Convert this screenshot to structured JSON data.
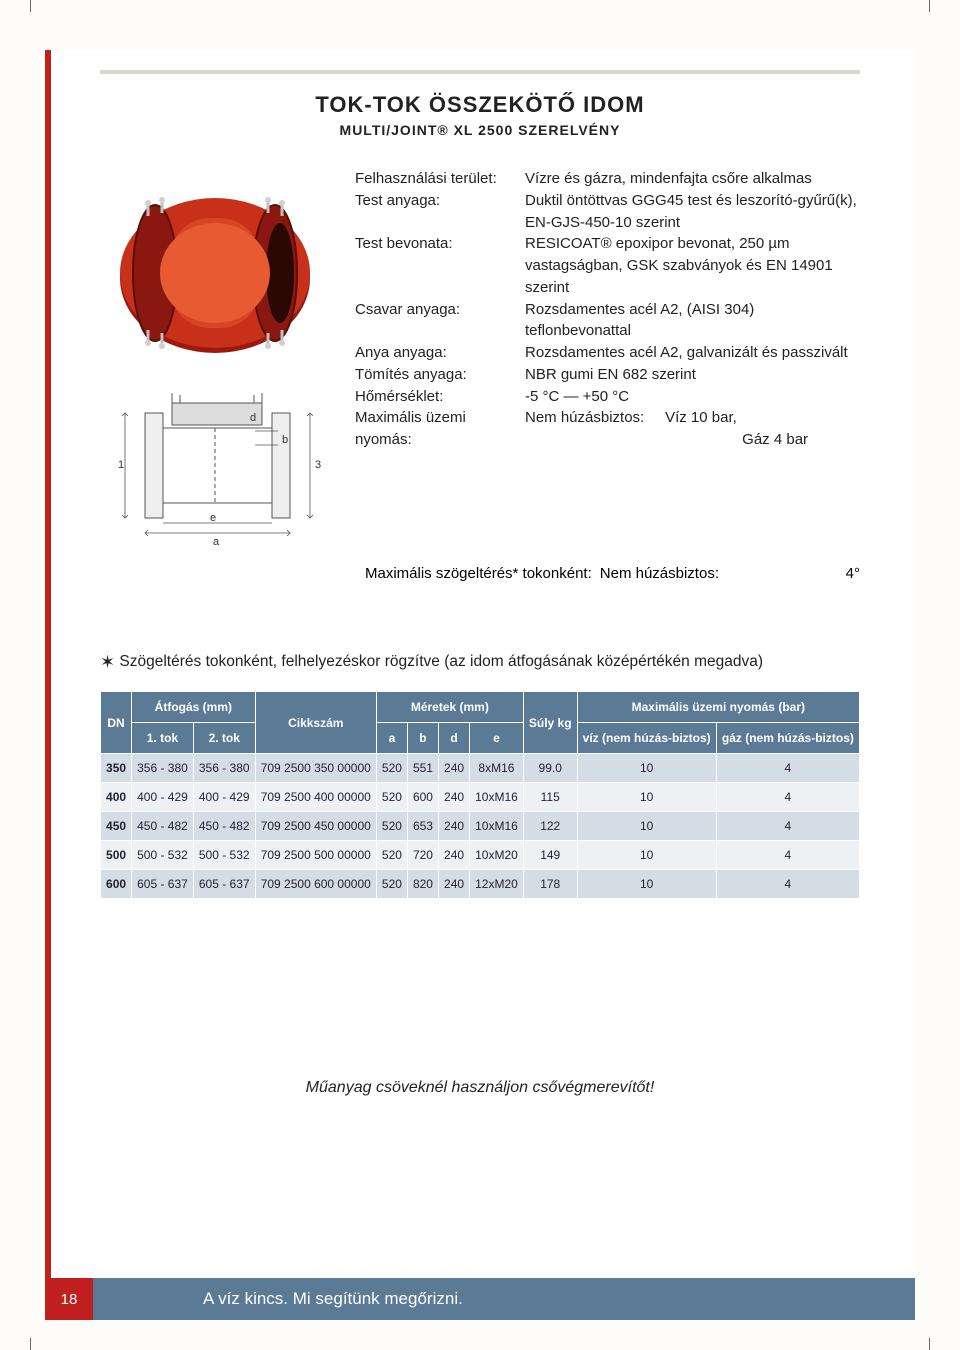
{
  "title": "TOK-TOK ÖSSZEKÖTŐ IDOM",
  "subtitle": "MULTI/JOINT® XL 2500 SZERELVÉNY",
  "specs": [
    {
      "label": "Felhasználási terület:",
      "value": "Vízre és gázra, mindenfajta csőre alkalmas"
    },
    {
      "label": "Test anyaga:",
      "value": "Duktil öntöttvas GGG45 test és leszorító-gyűrű(k), EN-GJS-450-10 szerint"
    },
    {
      "label": "Test bevonata:",
      "value": "RESICOAT® epoxipor bevonat, 250 µm vastagságban, GSK szabványok és EN 14901 szerint"
    },
    {
      "label": "Csavar anyaga:",
      "value": "Rozsdamentes acél A2, (AISI 304) teflonbevonattal"
    },
    {
      "label": "Anya anyaga:",
      "value": "Rozsdamentes acél A2, galvanizált és passzivált"
    },
    {
      "label": "Tömítés anyaga:",
      "value": "NBR gumi EN 682 szerint"
    },
    {
      "label": "Hőmérséklet:",
      "value": "-5 °C — +50 °C"
    }
  ],
  "maxPressure": {
    "label": "Maximális üzemi nyomás:",
    "sub": "Nem húzásbiztos:",
    "v1": "Víz 10 bar,",
    "v2": "Gáz 4 bar"
  },
  "angular": {
    "label": "Maximális szögeltérés* tokonként:",
    "mid": "Nem húzásbiztos:",
    "val": "4°"
  },
  "footnote": "Szögeltérés tokonként, felhelyezéskor rögzítve (az idom átfogásának középértékén megadva)",
  "tableHeaders": {
    "dn": "DN",
    "atfogas": "Átfogás (mm)",
    "tok1": "1. tok",
    "tok2": "2. tok",
    "cikkszam": "Cikkszám",
    "meretek": "Méretek (mm)",
    "a": "a",
    "b": "b",
    "d": "d",
    "e": "e",
    "suly": "Súly kg",
    "maxnyomas": "Maximális üzemi nyomás (bar)",
    "viz": "víz (nem húzás-biztos)",
    "gaz": "gáz (nem húzás-biztos)"
  },
  "rows": [
    [
      "350",
      "356 - 380",
      "356 - 380",
      "709 2500 350 00000",
      "520",
      "551",
      "240",
      "8xM16",
      "99.0",
      "10",
      "4"
    ],
    [
      "400",
      "400 - 429",
      "400 - 429",
      "709 2500 400 00000",
      "520",
      "600",
      "240",
      "10xM16",
      "115",
      "10",
      "4"
    ],
    [
      "450",
      "450 - 482",
      "450 - 482",
      "709 2500 450 00000",
      "520",
      "653",
      "240",
      "10xM16",
      "122",
      "10",
      "4"
    ],
    [
      "500",
      "500 - 532",
      "500 - 532",
      "709 2500 500 00000",
      "520",
      "720",
      "240",
      "10xM20",
      "149",
      "10",
      "4"
    ],
    [
      "600",
      "605 - 637",
      "605 - 637",
      "709 2500 600 00000",
      "520",
      "820",
      "240",
      "12xM20",
      "178",
      "10",
      "4"
    ]
  ],
  "italicNote": "Műanyag csöveknél használjon csővégmerevítőt!",
  "pageNum": "18",
  "footerText": "A víz kincs. Mi segítünk megőrizni.",
  "colors": {
    "brandRed": "#c02020",
    "tableHeader": "#5a7a95",
    "rowOdd": "#d4dde5",
    "rowEven": "#eef1f4",
    "rule": "#d8d6d0"
  },
  "diagramLabels": {
    "l1": "1",
    "l3": "3",
    "a": "a",
    "b": "b",
    "d": "d",
    "e": "e"
  }
}
